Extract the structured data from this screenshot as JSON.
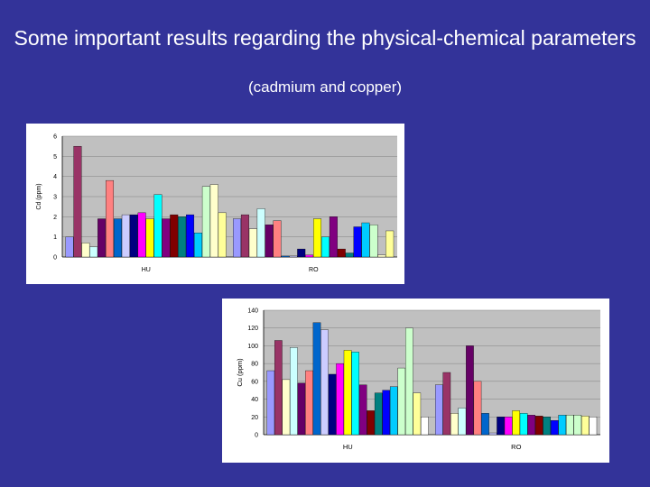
{
  "slide": {
    "title": "Some important results regarding the physical-chemical parameters",
    "subtitle": "(cadmium and copper)"
  },
  "chart_data": [
    {
      "type": "bar",
      "ylabel": "Cd (ppm)",
      "ylim": [
        0,
        6
      ],
      "yticks": [
        0,
        1,
        2,
        3,
        4,
        5,
        6
      ],
      "grid": true,
      "groups": [
        {
          "label": "HU",
          "values": [
            1.0,
            5.5,
            0.7,
            0.5,
            1.9,
            3.8,
            1.9,
            2.1,
            2.1,
            2.2,
            1.9,
            3.1,
            1.9,
            2.1,
            2.0,
            2.1,
            1.2,
            3.5,
            3.6,
            2.2
          ]
        },
        {
          "label": "RO",
          "values": [
            1.9,
            2.1,
            1.4,
            2.4,
            1.6,
            1.8,
            0.05,
            0.05,
            0.4,
            0.1,
            1.9,
            1.0,
            2.0,
            0.4,
            0.2,
            1.5,
            1.7,
            1.6,
            0.1,
            1.3
          ]
        }
      ],
      "colors": [
        "#9999ff",
        "#993366",
        "#ffffcc",
        "#ccffff",
        "#660066",
        "#ff8080",
        "#0066cc",
        "#ccccff",
        "#000080",
        "#ff00ff",
        "#ffff00",
        "#00ffff",
        "#800080",
        "#800000",
        "#008080",
        "#0000ff",
        "#00ccff",
        "#ccffcc",
        "#ffffcc",
        "#ffff99"
      ]
    },
    {
      "type": "bar",
      "ylabel": "Cu (ppm)",
      "ylim": [
        0,
        140
      ],
      "yticks": [
        0,
        20,
        40,
        60,
        80,
        100,
        120,
        140
      ],
      "grid": true,
      "groups": [
        {
          "label": "HU",
          "values": [
            72,
            106,
            62,
            98,
            58,
            72,
            126,
            118,
            68,
            80,
            95,
            93,
            56,
            27,
            47,
            50,
            54,
            75,
            120,
            47,
            20
          ]
        },
        {
          "label": "RO",
          "values": [
            56,
            70,
            24,
            30,
            100,
            60,
            24,
            2,
            20,
            20,
            27,
            24,
            22,
            21,
            20,
            16,
            22,
            22,
            22,
            21,
            20
          ]
        }
      ],
      "colors": [
        "#9999ff",
        "#993366",
        "#ffffcc",
        "#ccffff",
        "#660066",
        "#ff8080",
        "#0066cc",
        "#ccccff",
        "#000080",
        "#ff00ff",
        "#ffff00",
        "#00ffff",
        "#800080",
        "#800000",
        "#008080",
        "#0000ff",
        "#00ccff",
        "#ccffcc",
        "#ccffcc",
        "#ffff99",
        "#ffffff"
      ]
    }
  ]
}
